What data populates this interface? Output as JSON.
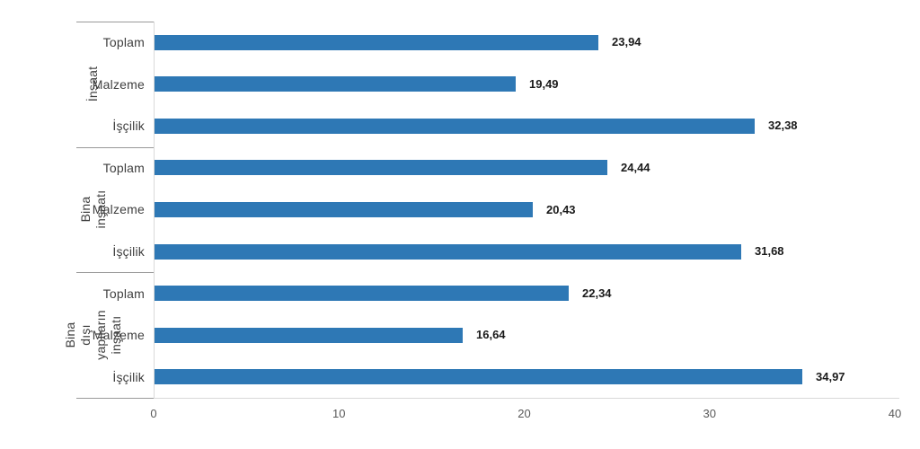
{
  "chart_data": {
    "type": "bar",
    "orientation": "horizontal",
    "title": "",
    "legend": "none",
    "grid": "off",
    "groups": [
      {
        "label": "İnşaat",
        "rows": [
          {
            "category": "Toplam",
            "value": 23.94,
            "value_label": "23,94"
          },
          {
            "category": "Malzeme",
            "value": 19.49,
            "value_label": "19,49"
          },
          {
            "category": "İşçilik",
            "value": 32.38,
            "value_label": "32,38"
          }
        ]
      },
      {
        "label": "Bina inşaatı",
        "rows": [
          {
            "category": "Toplam",
            "value": 24.44,
            "value_label": "24,44"
          },
          {
            "category": "Malzeme",
            "value": 20.43,
            "value_label": "20,43"
          },
          {
            "category": "İşçilik",
            "value": 31.68,
            "value_label": "31,68"
          }
        ]
      },
      {
        "label": "Bina dışı\nyapıların inşaatı",
        "rows": [
          {
            "category": "Toplam",
            "value": 22.34,
            "value_label": "22,34"
          },
          {
            "category": "Malzeme",
            "value": 16.64,
            "value_label": "16,64"
          },
          {
            "category": "İşçilik",
            "value": 34.97,
            "value_label": "34,97"
          }
        ]
      }
    ],
    "x_axis": {
      "min": 0,
      "max": 40,
      "tick_labels": [
        "0",
        "10",
        "20",
        "30",
        "40"
      ],
      "tick_values": [
        0,
        10,
        20,
        30,
        40
      ]
    },
    "colors": {
      "bar": "#2e78b5",
      "value_label_text": "#1a1a1a",
      "category_text": "#3f3f3f",
      "tick_text": "#595959",
      "group_separator": "#999999",
      "axis_line": "#d9d9d9"
    }
  }
}
